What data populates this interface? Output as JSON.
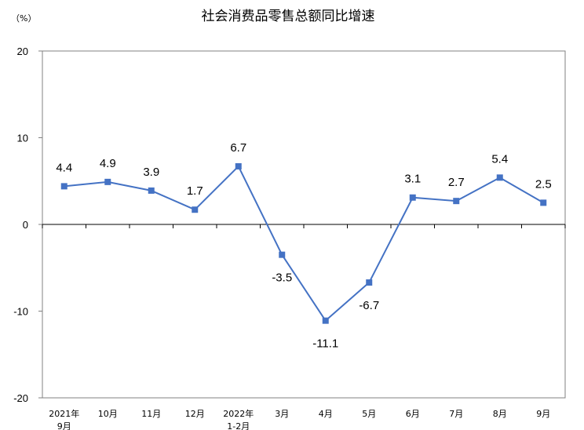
{
  "chart_data": {
    "type": "line",
    "title": "社会消费品零售总额同比增速",
    "ylabel": "（%）",
    "xlabel": "",
    "ylim": [
      -20,
      20
    ],
    "yticks": [
      20,
      10,
      0,
      -10,
      -20
    ],
    "grid": false,
    "legend": "none",
    "categories": [
      [
        "2021年",
        "9月"
      ],
      [
        "10月"
      ],
      [
        "11月"
      ],
      [
        "12月"
      ],
      [
        "2022年",
        "1-2月"
      ],
      [
        "3月"
      ],
      [
        "4月"
      ],
      [
        "5月"
      ],
      [
        "6月"
      ],
      [
        "7月"
      ],
      [
        "8月"
      ],
      [
        "9月"
      ]
    ],
    "series": [
      {
        "color": "#4472C4",
        "values": [
          4.4,
          4.9,
          3.9,
          1.7,
          6.7,
          -3.5,
          -11.1,
          -6.7,
          3.1,
          2.7,
          5.4,
          2.5
        ],
        "labels": [
          "4.4",
          "4.9",
          "3.9",
          "1.7",
          "6.7",
          "-3.5",
          "-11.1",
          "-6.7",
          "3.1",
          "2.7",
          "5.4",
          "2.5"
        ]
      }
    ]
  }
}
